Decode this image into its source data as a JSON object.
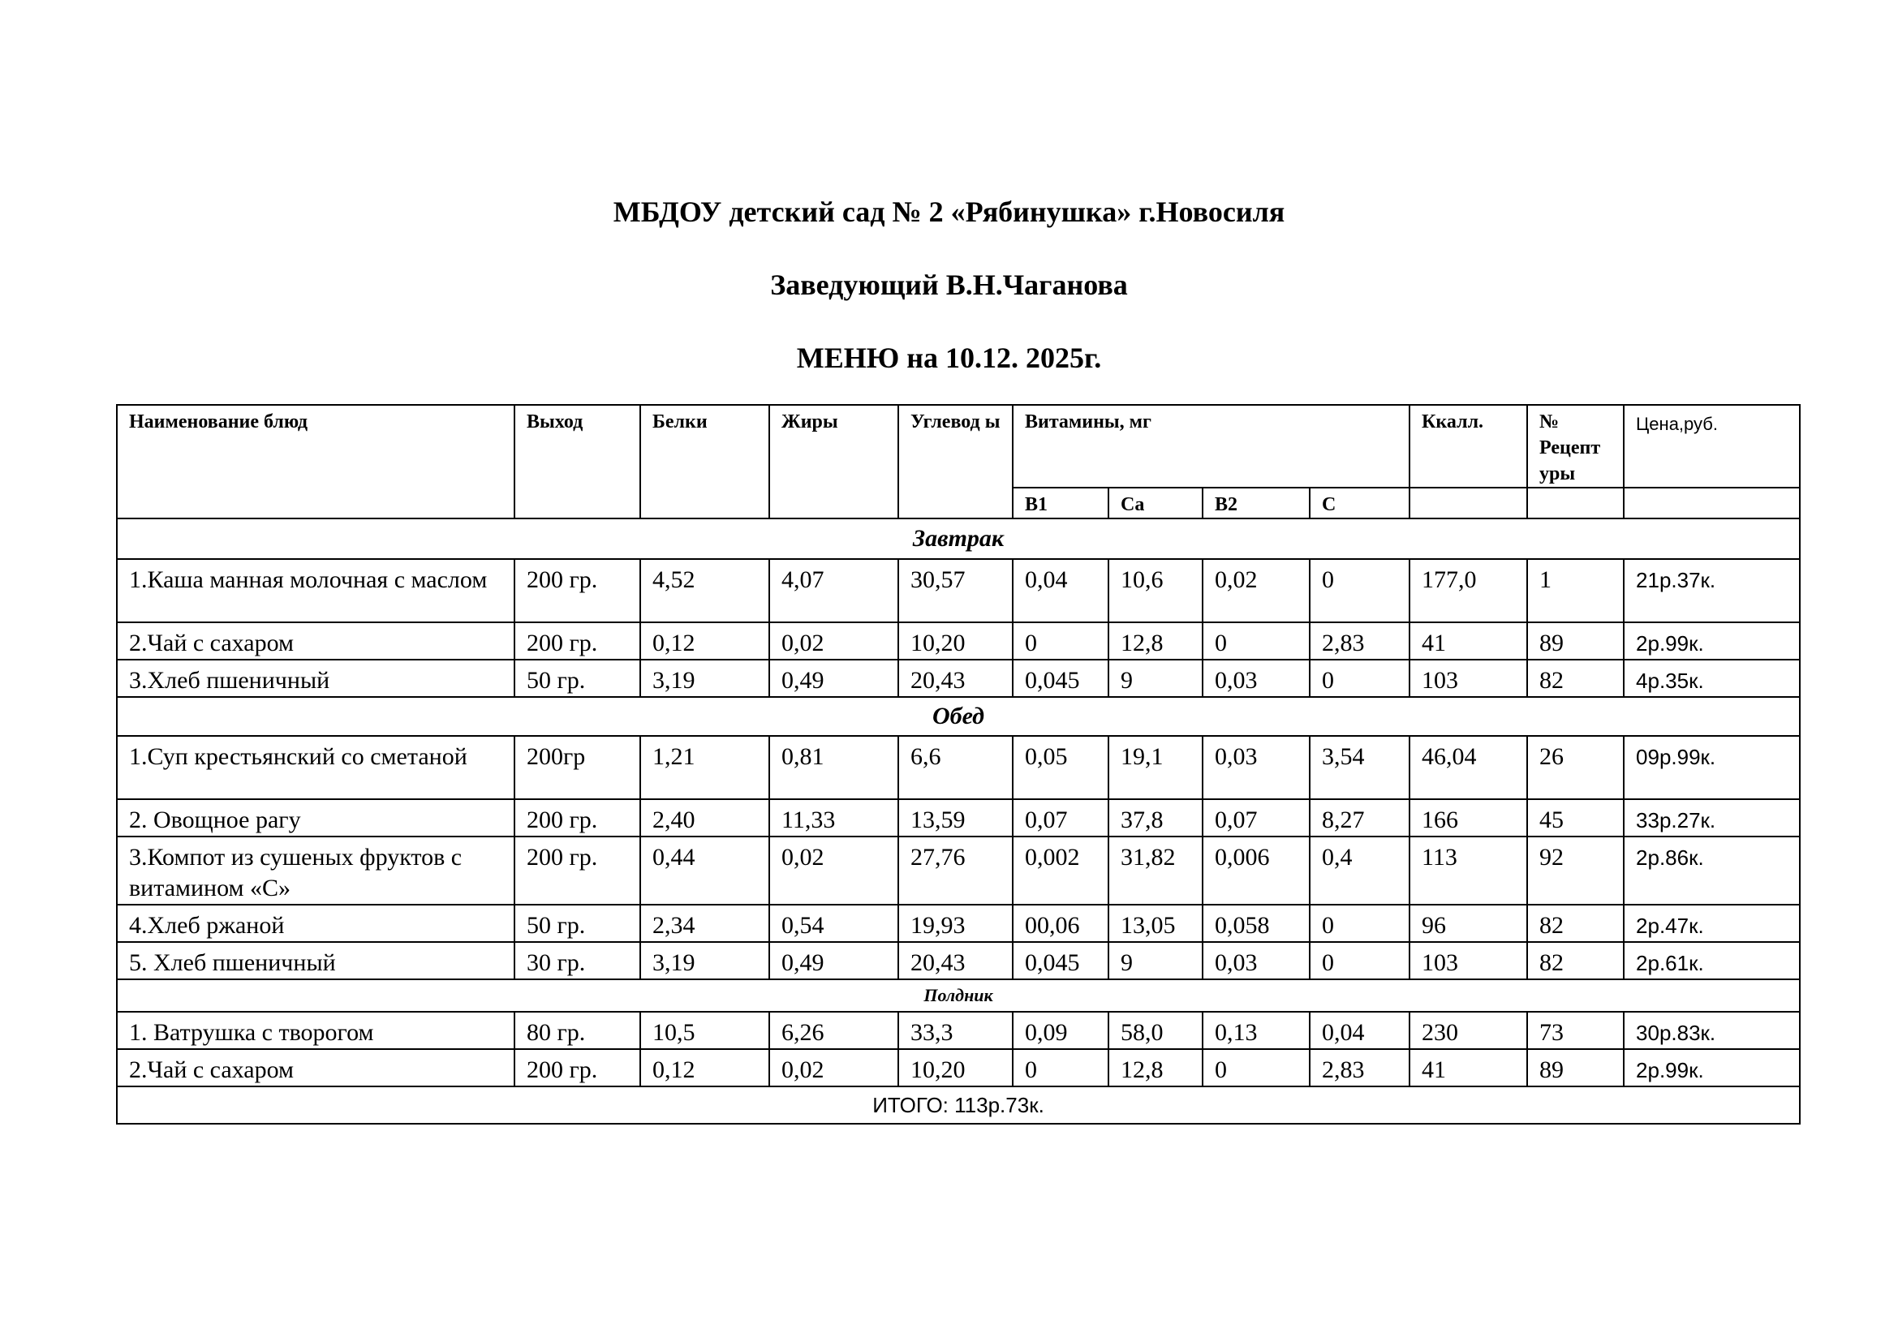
{
  "header": {
    "organization": "МБДОУ детский сад № 2 «Рябинушка» г.Новосиля",
    "director": "Заведующий  В.Н.Чаганова",
    "menu_title": "МЕНЮ на 10.12. 2025г."
  },
  "table": {
    "columns": {
      "name": "Наименование блюд",
      "yield": "Выход",
      "protein": "Белки",
      "fat": "Жиры",
      "carbs": "Углевод ы",
      "vitamins": "Витамины, мг",
      "kcal": "Ккалл.",
      "recipe": "№ Рецепт уры",
      "price": "Цена,руб."
    },
    "vitamin_columns": [
      "B1",
      "Ca",
      "B2",
      "C"
    ],
    "sections": [
      {
        "title": "Завтрак",
        "rows": [
          [
            "1.Каша манная молочная с маслом",
            "200 гр.",
            "4,52",
            "4,07",
            "30,57",
            "0,04",
            "10,6",
            "0,02",
            "0",
            "177,0",
            "1",
            "21р.37к."
          ],
          [
            "2.Чай с сахаром",
            "200 гр.",
            "0,12",
            "0,02",
            "10,20",
            "0",
            "12,8",
            "0",
            "2,83",
            "41",
            "89",
            "2р.99к."
          ],
          [
            "3.Хлеб пшеничный",
            "50 гр.",
            "3,19",
            "0,49",
            "20,43",
            "0,045",
            "9",
            "0,03",
            "0",
            "103",
            "82",
            "4р.35к."
          ]
        ]
      },
      {
        "title": "Обед",
        "rows": [
          [
            "1.Суп крестьянский со сметаной",
            "200гр",
            "1,21",
            "0,81",
            "6,6",
            "0,05",
            "19,1",
            "0,03",
            "3,54",
            "46,04",
            "26",
            "09р.99к."
          ],
          [
            "2. Овощное рагу",
            "200 гр.",
            "2,40",
            "11,33",
            "13,59",
            "0,07",
            "37,8",
            "0,07",
            "8,27",
            "166",
            "45",
            "33р.27к."
          ],
          [
            "3.Компот из сушеных фруктов с витамином «С»",
            "200 гр.",
            "0,44",
            "0,02",
            "27,76",
            "0,002",
            "31,82",
            "0,006",
            "0,4",
            "113",
            "92",
            "2р.86к."
          ],
          [
            "4.Хлеб ржаной",
            "50 гр.",
            "2,34",
            "0,54",
            "19,93",
            "00,06",
            "13,05",
            "0,058",
            "0",
            "96",
            "82",
            "2р.47к."
          ],
          [
            "5. Хлеб пшеничный",
            "30 гр.",
            "3,19",
            "0,49",
            "20,43",
            "0,045",
            "9",
            "0,03",
            "0",
            "103",
            "82",
            "2р.61к."
          ]
        ]
      },
      {
        "title": "Полдник",
        "rows": [
          [
            "1. Ватрушка с творогом",
            "80 гр.",
            "10,5",
            "6,26",
            "33,3",
            "0,09",
            "58,0",
            "0,13",
            "0,04",
            "230",
            "73",
            "30р.83к."
          ],
          [
            "2.Чай с сахаром",
            "200 гр.",
            "0,12",
            "0,02",
            "10,20",
            "0",
            "12,8",
            "0",
            "2,83",
            "41",
            "89",
            "2р.99к."
          ]
        ]
      }
    ],
    "total": "ИТОГО: 113р.73к."
  }
}
